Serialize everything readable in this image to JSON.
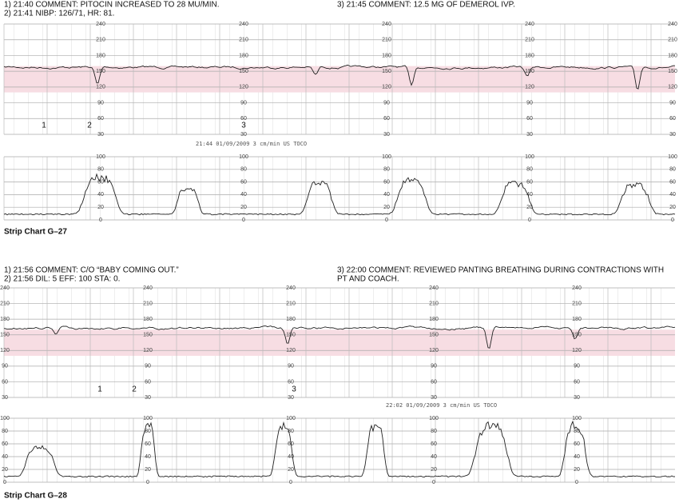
{
  "strips": [
    {
      "comments_left": [
        "1) 21:40 COMMENT: PITOCIN INCREASED TO 28 MU/MIN.",
        "2) 21:41 NIBP: 126/71, HR: 81."
      ],
      "comments_right": [
        "3) 21:45 COMMENT: 12.5 MG OF DEMEROL IVP."
      ],
      "fhr_scale": [
        "240",
        "210",
        "180",
        "150",
        "120",
        "90",
        "60",
        "30"
      ],
      "ua_scale": [
        "100",
        "80",
        "60",
        "40",
        "20",
        "0"
      ],
      "markers": [
        "1",
        "2",
        "3"
      ],
      "footer": "21:44 01/09/2009 3 cm/min US TOCO",
      "caption": "Strip Chart G–27"
    },
    {
      "comments_left": [
        "1) 21:56 COMMENT: C/O “BABY COMING OUT.”",
        "2) 21:56 DIL: 5 EFF: 100 STA: 0."
      ],
      "comments_right": [
        "3) 22:00 COMMENT: REVIEWED PANTING BREATHING DURING CONTRACTIONS WITH",
        "PT AND COACH."
      ],
      "fhr_scale": [
        "240",
        "210",
        "180",
        "150",
        "120",
        "90",
        "60",
        "30"
      ],
      "ua_scale": [
        "100",
        "80",
        "60",
        "40",
        "20",
        "0"
      ],
      "markers": [
        "1",
        "2",
        "3"
      ],
      "footer": "22:02 01/09/2009 3 cm/min US TOCO",
      "caption": "Strip Chart G–28"
    }
  ]
}
